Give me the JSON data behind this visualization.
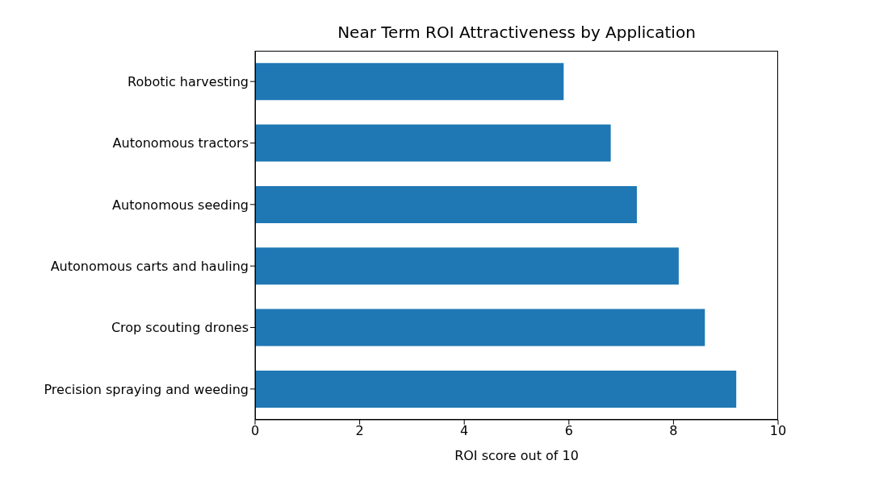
{
  "chart_data": {
    "type": "bar",
    "orientation": "horizontal",
    "title": "Near Term ROI Attractiveness by Application",
    "xlabel": "ROI score out of 10",
    "categories": [
      "Robotic harvesting",
      "Autonomous tractors",
      "Autonomous seeding",
      "Autonomous carts and hauling",
      "Crop scouting drones",
      "Precision spraying and weeding"
    ],
    "values": [
      5.9,
      6.8,
      7.3,
      8.1,
      8.6,
      9.2
    ],
    "color": "#1f77b4",
    "xlim": [
      0,
      10
    ],
    "xticks": [
      0,
      2,
      4,
      6,
      8,
      10
    ],
    "grid": false
  }
}
